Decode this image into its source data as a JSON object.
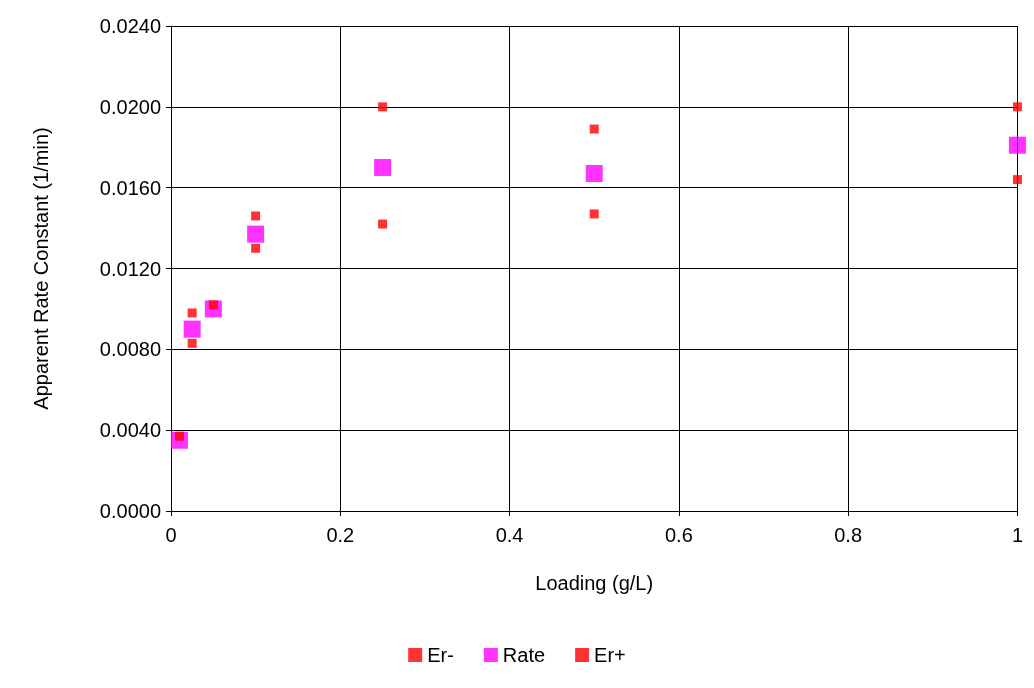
{
  "chart_data": {
    "type": "scatter",
    "xlabel": "Loading (g/L)",
    "ylabel": "Apparent Rate Constant (1/min)",
    "x": [
      0.01,
      0.025,
      0.05,
      0.1,
      0.25,
      0.5,
      1
    ],
    "series": [
      {
        "name": "Er-",
        "color": "#ff0000",
        "marker": "square",
        "values": [
          null,
          0.0083,
          null,
          0.013,
          0.0142,
          0.0147,
          0.0164
        ]
      },
      {
        "name": "Rate",
        "color": "#ff00ff",
        "marker": "square",
        "values": [
          0.0035,
          0.009,
          0.01,
          0.0137,
          0.017,
          0.0167,
          0.0181
        ]
      },
      {
        "name": "Er+",
        "color": "#ff0000",
        "marker": "square",
        "values": [
          0.0037,
          0.0098,
          0.0102,
          0.0146,
          0.02,
          0.0189,
          0.02
        ]
      }
    ],
    "xlim": [
      0,
      1
    ],
    "xticks": [
      0,
      0.2,
      0.4,
      0.6,
      0.8,
      1
    ],
    "ylim": [
      0,
      0.024
    ],
    "yticks": [
      {
        "value": 0,
        "label": "0.0000"
      },
      {
        "value": 0.004,
        "label": "0.0040"
      },
      {
        "value": 0.008,
        "label": "0.0080"
      },
      {
        "value": 0.012,
        "label": "0.0120"
      },
      {
        "value": 0.016,
        "label": "0.0160"
      },
      {
        "value": 0.02,
        "label": "0.0200"
      },
      {
        "value": 0.024,
        "label": "0.0240"
      }
    ],
    "grid": true,
    "legend": "bottom"
  }
}
